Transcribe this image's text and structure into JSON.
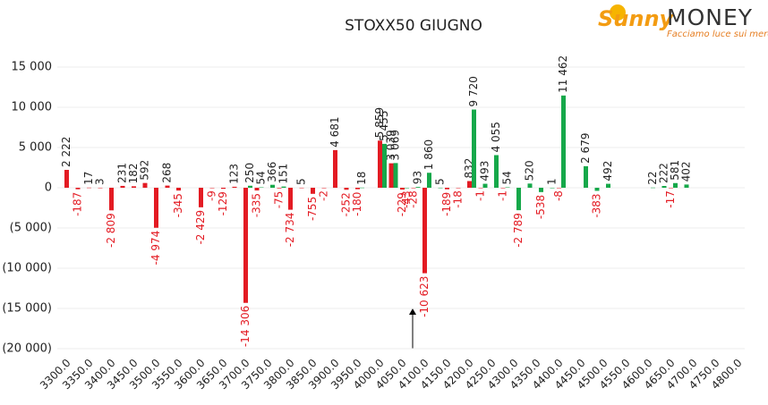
{
  "chart_data": {
    "type": "bar",
    "title": "STOXX50 GIUGNO",
    "categories": [
      "3300.0",
      null,
      "3350.0",
      null,
      "3400.0",
      null,
      "3450.0",
      null,
      "3500.0",
      null,
      "3550.0",
      null,
      "3600.0",
      null,
      "3650.0",
      null,
      "3700.0",
      null,
      "3750.0",
      null,
      "3800.0",
      null,
      "3850.0",
      null,
      "3900.0",
      null,
      "3950.0",
      null,
      "4000.0",
      null,
      "4050.0",
      null,
      "4100.0",
      null,
      "4150.0",
      null,
      "4200.0",
      null,
      "4250.0",
      null,
      "4300.0",
      null,
      "4350.0",
      null,
      "4400.0",
      null,
      "4450.0",
      null,
      "4500.0",
      null,
      "4550.0",
      null,
      "4600.0",
      null,
      "4650.0",
      null,
      "4700.0",
      null,
      "4750.0",
      null,
      "4800.0"
    ],
    "series": [
      {
        "color": "#e31b23",
        "values": [
          2222,
          -187,
          17,
          3,
          -2809,
          231,
          182,
          592,
          -4974,
          268,
          -345,
          null,
          -2429,
          -9,
          -129,
          123,
          -14306,
          -335,
          null,
          -75,
          -2734,
          5,
          -755,
          -2,
          4681,
          -252,
          -180,
          null,
          5859,
          3039,
          -229,
          -28,
          -10623,
          null,
          -189,
          -18,
          832,
          -1,
          null,
          -1,
          null,
          null,
          null,
          null,
          -8,
          null,
          null,
          null,
          null,
          null,
          null,
          null,
          null,
          null,
          -17,
          null,
          null,
          null,
          null,
          null,
          null
        ],
        "value_labels": [
          "2 222",
          "-187",
          "17",
          "3",
          "-2 809",
          "231",
          "182",
          "592",
          "-4 974",
          "268",
          "-345",
          null,
          "-2 429",
          "-9",
          "-129",
          "123",
          "-14 306",
          "-335",
          null,
          "-75",
          "-2 734",
          "5",
          "-755",
          "-2",
          "4 681",
          "-252",
          "-180",
          null,
          "5 859",
          "3 039",
          "-229",
          "-28",
          "-10 623",
          null,
          "-189",
          "-18",
          "832",
          "-1",
          null,
          "-1",
          null,
          null,
          null,
          null,
          "-8",
          null,
          null,
          null,
          null,
          null,
          null,
          null,
          null,
          null,
          "-17",
          null,
          null,
          null,
          null,
          null,
          null
        ]
      },
      {
        "color": "#16a84a",
        "values": [
          null,
          null,
          null,
          null,
          null,
          null,
          null,
          null,
          null,
          null,
          null,
          null,
          null,
          null,
          null,
          null,
          250,
          54,
          366,
          151,
          null,
          null,
          null,
          null,
          null,
          null,
          18,
          null,
          5455,
          3069,
          -43,
          93,
          1860,
          5,
          null,
          null,
          9720,
          493,
          4055,
          54,
          -2789,
          520,
          -538,
          1,
          11462,
          null,
          2679,
          -383,
          492,
          null,
          null,
          null,
          22,
          222,
          581,
          402,
          null,
          null,
          null,
          null,
          null
        ],
        "value_labels": [
          null,
          null,
          null,
          null,
          null,
          null,
          null,
          null,
          null,
          null,
          null,
          null,
          null,
          null,
          null,
          null,
          "250",
          "54",
          "366",
          "151",
          null,
          null,
          null,
          null,
          null,
          null,
          "18",
          null,
          "5 455",
          "3 069",
          "-43",
          "93",
          "1 860",
          "5",
          null,
          null,
          "9 720",
          "493",
          "4 055",
          "54",
          "-2 789",
          "520",
          "-538",
          "1",
          "11 462",
          null,
          "2 679",
          "-383",
          "492",
          null,
          null,
          null,
          "22",
          "222",
          "581",
          "402",
          null,
          null,
          null,
          null,
          null
        ]
      }
    ],
    "ylim": [
      -20000,
      15000
    ],
    "yticks": [
      {
        "value": -20000,
        "label": "(20 000)"
      },
      {
        "value": -15000,
        "label": "(15 000)"
      },
      {
        "value": -10000,
        "label": "(10 000)"
      },
      {
        "value": -5000,
        "label": "(5 000)"
      },
      0,
      {
        "value": 5000,
        "label": "5 000"
      },
      {
        "value": 10000,
        "label": "10 000"
      },
      {
        "value": 15000,
        "label": "15 000"
      }
    ],
    "grid": true
  },
  "logo": {
    "brand": "Sunny",
    "name": "MONEY",
    "tagline": "Facciamo luce sui mercati"
  }
}
